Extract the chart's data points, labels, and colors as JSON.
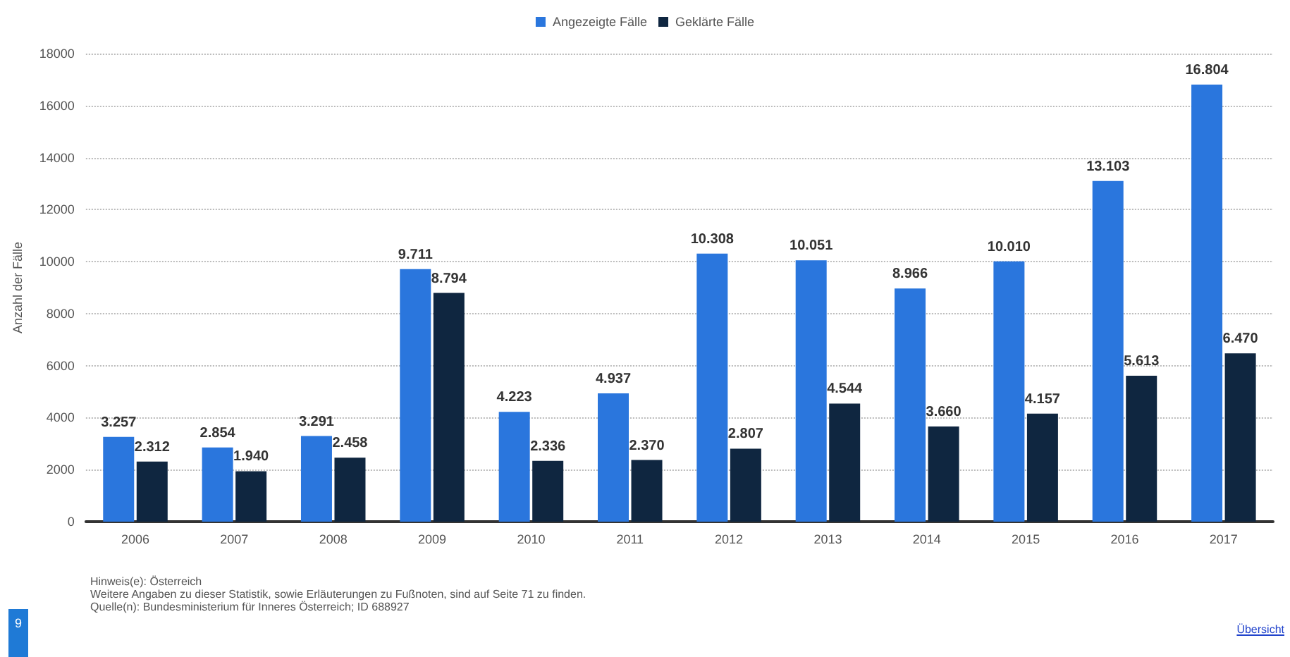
{
  "chart_data": {
    "type": "bar",
    "ylabel": "Anzahl der Fälle",
    "categories": [
      "2006",
      "2007",
      "2008",
      "2009",
      "2010",
      "2011",
      "2012",
      "2013",
      "2014",
      "2015",
      "2016",
      "2017"
    ],
    "series": [
      {
        "name": "Angezeigte Fälle",
        "color": "#2a76dd",
        "values": [
          3257,
          2854,
          3291,
          9711,
          4223,
          4937,
          10308,
          10051,
          8966,
          10010,
          13103,
          16804
        ],
        "value_labels": [
          "3.257",
          "2.854",
          "3.291",
          "9.711",
          "4.223",
          "4.937",
          "10.308",
          "10.051",
          "8.966",
          "10.010",
          "13.103",
          "16.804"
        ]
      },
      {
        "name": "Geklärte Fälle",
        "color": "#0f2640",
        "values": [
          2312,
          1940,
          2458,
          8794,
          2336,
          2370,
          2807,
          4544,
          3660,
          4157,
          5613,
          6470
        ],
        "value_labels": [
          "2.312",
          "1.940",
          "2.458",
          "8.794",
          "2.336",
          "2.370",
          "2.807",
          "4.544",
          "3.660",
          "4.157",
          "5.613",
          "6.470"
        ]
      }
    ],
    "ylim": [
      0,
      18000
    ],
    "yticks": [
      0,
      2000,
      4000,
      6000,
      8000,
      10000,
      12000,
      14000,
      16000,
      18000
    ],
    "grid": "y",
    "legend": "top",
    "annotations": [
      "Hinweis(e): Österreich",
      "Weitere Angaben zu dieser Statistik, sowie Erläuterungen zu Fußnoten, sind auf Seite 71 zu finden.",
      "Quelle(n): Bundesministerium für Inneres Österreich; ID 688927",
      "9",
      "Übersicht"
    ]
  }
}
